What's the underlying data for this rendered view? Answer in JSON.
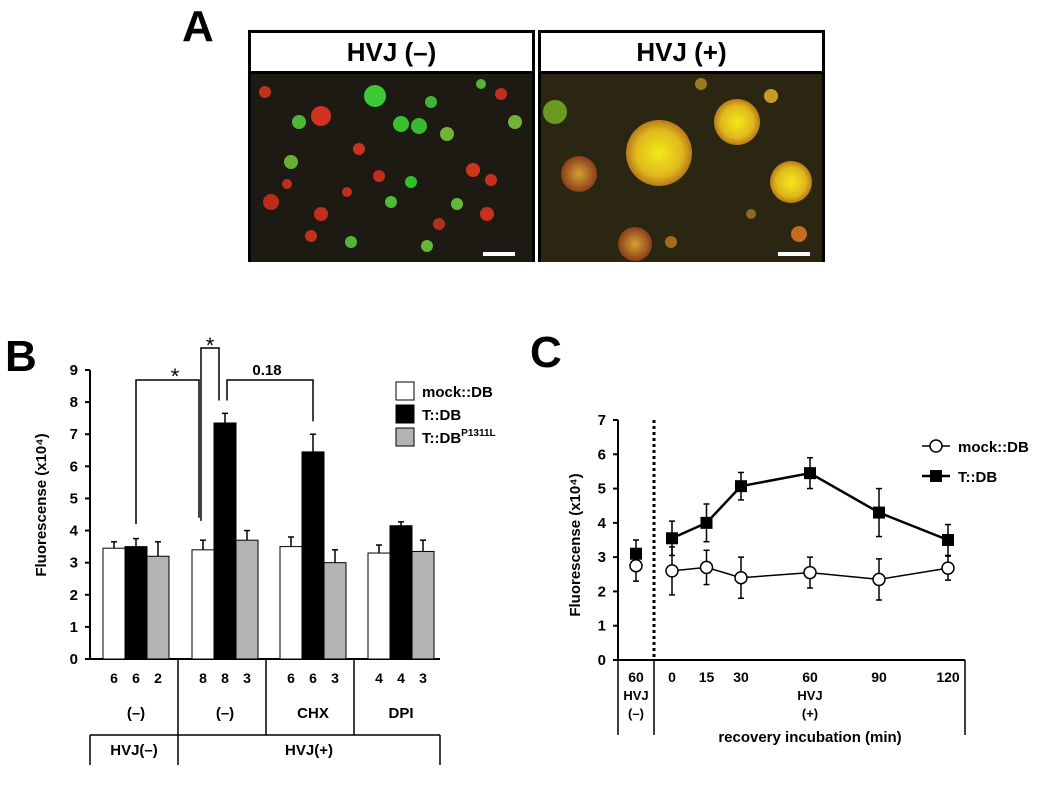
{
  "panels": {
    "a": "A",
    "b": "B",
    "c": "C"
  },
  "panel_a": {
    "images": [
      {
        "title": "HVJ (–)"
      },
      {
        "title": "HVJ (+)"
      }
    ]
  },
  "colors": {
    "black": "#000000",
    "white": "#ffffff",
    "gray": "#b4b4b4"
  },
  "chart_data": [
    {
      "type": "bar",
      "ylabel": "Fluorescense (x10⁴)",
      "ylim": [
        0,
        9
      ],
      "yticks": [
        0,
        1,
        2,
        3,
        4,
        5,
        6,
        7,
        8,
        9
      ],
      "legend": [
        "mock::DB",
        "T::DB",
        "T::DB^P1311L"
      ],
      "legend_placement": "top-right",
      "groups": [
        {
          "label": "(–)",
          "treatment": "HVJ(–)"
        },
        {
          "label": "(–)",
          "treatment": "HVJ(+)"
        },
        {
          "label": "CHX",
          "treatment": "HVJ(+)"
        },
        {
          "label": "DPI",
          "treatment": "HVJ(+)"
        }
      ],
      "treatment_labels": [
        "HVJ(–)",
        "HVJ(+)"
      ],
      "series": [
        {
          "name": "mock::DB",
          "values": [
            3.45,
            3.4,
            3.5,
            3.3
          ],
          "errors": [
            0.2,
            0.3,
            0.3,
            0.25
          ],
          "n": [
            "6",
            "8",
            "6",
            "4"
          ]
        },
        {
          "name": "T::DB",
          "values": [
            3.5,
            7.35,
            6.45,
            4.15
          ],
          "errors": [
            0.25,
            0.3,
            0.55,
            0.12
          ],
          "n": [
            "6",
            "8",
            "6",
            "4"
          ]
        },
        {
          "name": "T::DB^P1311L",
          "values": [
            3.2,
            3.7,
            3.0,
            3.35
          ],
          "errors": [
            0.45,
            0.3,
            0.4,
            0.35
          ],
          "n": [
            "2",
            "3",
            "3",
            "3"
          ]
        }
      ],
      "annotations": [
        "*",
        "*",
        "0.18"
      ]
    },
    {
      "type": "line",
      "ylabel": "Fluorescense (x10⁴)",
      "xlabel": "recovery incubation (min)",
      "ylim": [
        0,
        7
      ],
      "yticks": [
        0,
        1,
        2,
        3,
        4,
        5,
        6,
        7
      ],
      "legend": [
        "mock::DB",
        "T::DB"
      ],
      "legend_placement": "top-right",
      "control": {
        "x_label": "60",
        "condition": [
          "HVJ",
          "(–)"
        ],
        "mock": 2.75,
        "mock_err": 0.45,
        "tdb": 3.1,
        "tdb_err": 0.4
      },
      "x": [
        0,
        15,
        30,
        60,
        90,
        120
      ],
      "condition": [
        "HVJ",
        "(+)"
      ],
      "series": [
        {
          "name": "mock::DB",
          "values": [
            2.6,
            2.7,
            2.4,
            2.55,
            2.35,
            2.68
          ],
          "errors": [
            0.7,
            0.5,
            0.6,
            0.45,
            0.6,
            0.35
          ]
        },
        {
          "name": "T::DB",
          "values": [
            3.55,
            4.0,
            5.07,
            5.45,
            4.3,
            3.5
          ],
          "errors": [
            0.5,
            0.55,
            0.4,
            0.45,
            0.7,
            0.45
          ]
        }
      ]
    }
  ]
}
